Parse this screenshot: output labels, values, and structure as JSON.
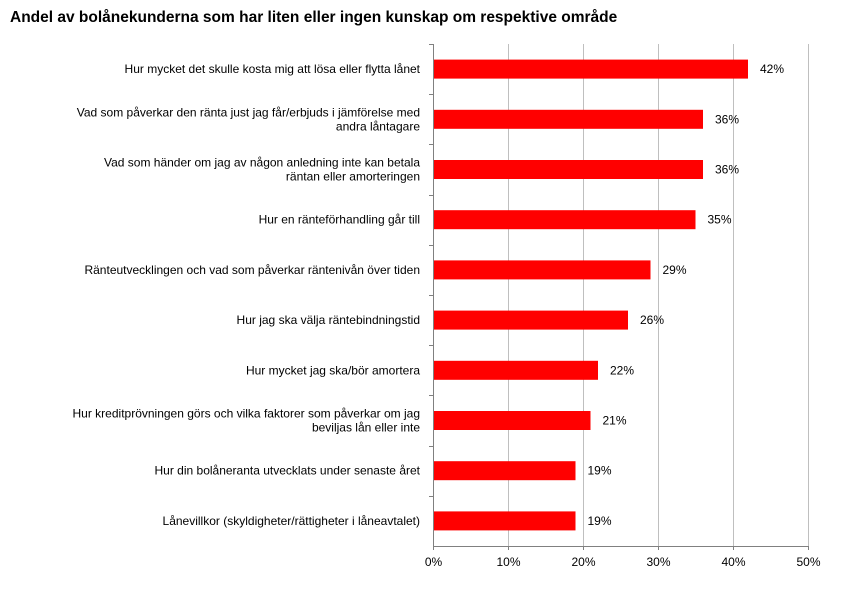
{
  "chart_data": {
    "type": "bar",
    "orientation": "horizontal",
    "title": "Andel av bolånekunderna som har liten eller ingen kunskap om respektive område",
    "categories": [
      [
        "Hur mycket det skulle kosta mig att lösa eller flytta lånet"
      ],
      [
        "Vad som påverkar den ränta just jag får/erbjuds i jämförelse med",
        "andra låntagare"
      ],
      [
        "Vad som händer om jag av någon anledning inte kan betala",
        "räntan eller amorteringen"
      ],
      [
        "Hur en ränteförhandling går till"
      ],
      [
        "Ränteutvecklingen och vad som påverkar räntenivån över tiden"
      ],
      [
        "Hur jag ska välja räntebindningstid"
      ],
      [
        "Hur mycket jag ska/bör amortera"
      ],
      [
        "Hur kreditprövningen görs och vilka faktorer som påverkar om jag",
        "beviljas lån eller inte"
      ],
      [
        "Hur din bolåneranta utvecklats under senaste året"
      ],
      [
        "Lånevillkor (skyldigheter/rättigheter i låneavtalet)"
      ]
    ],
    "values": [
      42,
      36,
      36,
      35,
      29,
      26,
      22,
      21,
      19,
      19
    ],
    "data_labels": [
      "42%",
      "36%",
      "36%",
      "35%",
      "29%",
      "26%",
      "22%",
      "21%",
      "19%",
      "19%"
    ],
    "xlim": [
      0,
      50
    ],
    "x_ticks": [
      "0%",
      "10%",
      "20%",
      "30%",
      "40%",
      "50%"
    ],
    "grid": true,
    "bar_color": "#ff0000",
    "grid_color": "#bfbfbf"
  }
}
